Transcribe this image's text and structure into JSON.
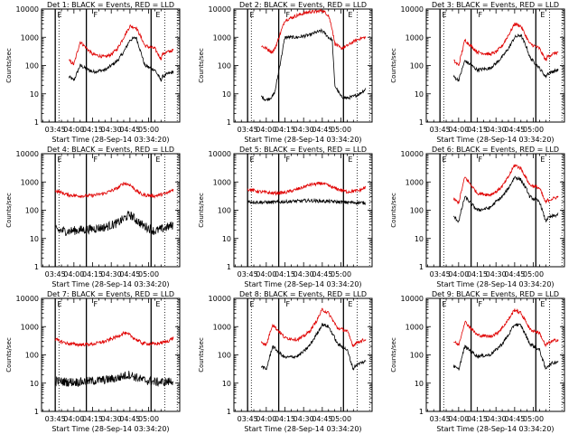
{
  "chart_data": [
    {
      "type": "line",
      "title": "Det 1: BLACK = Events, RED = LLD",
      "xlabel": "Start Time (28-Sep-14 03:34:20)",
      "ylabel": "Counts/sec",
      "x_ticks": [
        "03:45",
        "04:00",
        "04:15",
        "04:30",
        "04:45",
        "05:00"
      ],
      "y_ticks": [
        "1",
        "10",
        "100",
        "1000",
        "10000"
      ],
      "ylim": [
        1,
        10000
      ],
      "y_scale": "log",
      "flags": [
        "E",
        "F",
        "E"
      ],
      "series": [
        {
          "color": "#000000",
          "x_minutes": [
            11,
            15,
            20,
            30,
            40,
            45,
            50,
            55,
            60,
            65,
            70,
            72,
            80,
            85,
            86,
            90,
            95
          ],
          "values": [
            40,
            30,
            100,
            60,
            70,
            100,
            150,
            300,
            800,
            1000,
            200,
            100,
            70,
            30,
            40,
            50,
            60
          ]
        },
        {
          "color": "#e00000",
          "x_minutes": [
            11,
            15,
            20,
            30,
            40,
            45,
            50,
            55,
            60,
            65,
            70,
            72,
            80,
            85,
            86,
            90,
            95
          ],
          "values": [
            150,
            110,
            700,
            250,
            200,
            250,
            400,
            1000,
            2500,
            2200,
            800,
            500,
            400,
            170,
            250,
            300,
            350
          ]
        }
      ]
    },
    {
      "type": "line",
      "title": "Det 2: BLACK = Events, RED = LLD",
      "xlabel": "Start Time (28-Sep-14 03:34:20)",
      "ylabel": "Counts/sec",
      "x_ticks": [
        "03:45",
        "04:00",
        "04:15",
        "04:30",
        "04:45",
        "05:00"
      ],
      "y_ticks": [
        "1",
        "10",
        "100",
        "1000",
        "10000"
      ],
      "ylim": [
        1,
        10000
      ],
      "y_scale": "log",
      "flags": [
        "E",
        "F",
        "E"
      ],
      "series": [
        {
          "color": "#000000",
          "x_minutes": [
            11,
            15,
            20,
            22,
            30,
            40,
            45,
            50,
            55,
            60,
            65,
            68,
            70,
            75,
            80,
            85,
            90,
            95
          ],
          "values": [
            8,
            6,
            8,
            12,
            1000,
            1000,
            1100,
            1200,
            1500,
            1700,
            1000,
            800,
            20,
            8,
            7,
            8,
            10,
            15
          ]
        },
        {
          "color": "#e00000",
          "x_minutes": [
            11,
            15,
            20,
            22,
            30,
            40,
            45,
            50,
            55,
            60,
            65,
            68,
            70,
            75,
            80,
            85,
            90,
            95
          ],
          "values": [
            500,
            400,
            300,
            400,
            4000,
            6000,
            7000,
            8000,
            8000,
            9000,
            6000,
            2000,
            600,
            400,
            500,
            700,
            900,
            1000
          ]
        }
      ]
    },
    {
      "type": "line",
      "title": "Det 3: BLACK = Events, RED = LLD",
      "xlabel": "Start Time (28-Sep-14 03:34:20)",
      "ylabel": "Counts/sec",
      "x_ticks": [
        "03:45",
        "04:00",
        "04:15",
        "04:30",
        "04:45",
        "05:00"
      ],
      "y_ticks": [
        "1",
        "10",
        "100",
        "1000",
        "10000"
      ],
      "ylim": [
        1,
        10000
      ],
      "y_scale": "log",
      "flags": [
        "E",
        "F",
        "E"
      ],
      "series": [
        {
          "color": "#000000",
          "x_minutes": [
            11,
            15,
            20,
            30,
            40,
            45,
            50,
            55,
            60,
            65,
            70,
            72,
            80,
            85,
            86,
            90,
            95
          ],
          "values": [
            40,
            30,
            150,
            70,
            80,
            120,
            200,
            400,
            1000,
            1200,
            400,
            200,
            80,
            40,
            50,
            60,
            70
          ]
        },
        {
          "color": "#e00000",
          "x_minutes": [
            11,
            15,
            20,
            30,
            40,
            45,
            50,
            55,
            60,
            65,
            70,
            72,
            80,
            85,
            86,
            90,
            95
          ],
          "values": [
            150,
            100,
            800,
            300,
            250,
            300,
            500,
            1200,
            3000,
            2500,
            900,
            600,
            400,
            150,
            200,
            250,
            300
          ]
        }
      ]
    },
    {
      "type": "line",
      "title": "Det 4: BLACK = Events, RED = LLD",
      "xlabel": "Start Time (28-Sep-14 03:34:20)",
      "ylabel": "Counts/sec",
      "x_ticks": [
        "03:45",
        "04:00",
        "04:15",
        "04:30",
        "04:45",
        "05:00"
      ],
      "y_ticks": [
        "1",
        "10",
        "100",
        "1000",
        "10000"
      ],
      "ylim": [
        1,
        10000
      ],
      "y_scale": "log",
      "flags": [
        "E",
        "F",
        "E"
      ],
      "series": [
        {
          "color": "#000000",
          "x_minutes": [
            0,
            10,
            20,
            30,
            40,
            50,
            55,
            60,
            65,
            70,
            80,
            90,
            95
          ],
          "values": [
            20,
            18,
            20,
            22,
            25,
            35,
            50,
            70,
            45,
            30,
            18,
            25,
            30
          ]
        },
        {
          "color": "#e00000",
          "x_minutes": [
            0,
            10,
            20,
            30,
            40,
            50,
            55,
            60,
            65,
            70,
            80,
            90,
            95
          ],
          "values": [
            500,
            350,
            320,
            330,
            400,
            600,
            900,
            800,
            500,
            350,
            320,
            400,
            550
          ]
        }
      ]
    },
    {
      "type": "line",
      "title": "Det 5: BLACK = Events, RED = LLD",
      "xlabel": "Start Time (28-Sep-14 03:34:20)",
      "ylabel": "Counts/sec",
      "x_ticks": [
        "03:45",
        "04:00",
        "04:15",
        "04:30",
        "04:45",
        "05:00"
      ],
      "y_ticks": [
        "1",
        "10",
        "100",
        "1000",
        "10000"
      ],
      "ylim": [
        1,
        10000
      ],
      "y_scale": "log",
      "flags": [
        "E",
        "F",
        "E"
      ],
      "series": [
        {
          "color": "#000000",
          "x_minutes": [
            0,
            10,
            20,
            30,
            40,
            50,
            60,
            70,
            80,
            90,
            95
          ],
          "values": [
            200,
            190,
            190,
            200,
            210,
            220,
            210,
            200,
            190,
            185,
            180
          ]
        },
        {
          "color": "#e00000",
          "x_minutes": [
            0,
            10,
            20,
            30,
            40,
            50,
            60,
            70,
            80,
            90,
            95
          ],
          "values": [
            550,
            450,
            400,
            420,
            550,
            800,
            900,
            600,
            450,
            500,
            650
          ]
        }
      ]
    },
    {
      "type": "line",
      "title": "Det 6: BLACK = Events, RED = LLD",
      "xlabel": "Start Time (28-Sep-14 03:34:20)",
      "ylabel": "Counts/sec",
      "x_ticks": [
        "03:45",
        "04:00",
        "04:15",
        "04:30",
        "04:45",
        "05:00"
      ],
      "y_ticks": [
        "1",
        "10",
        "100",
        "1000",
        "10000"
      ],
      "ylim": [
        1,
        10000
      ],
      "y_scale": "log",
      "flags": [
        "E",
        "F",
        "E"
      ],
      "series": [
        {
          "color": "#000000",
          "x_minutes": [
            11,
            15,
            20,
            30,
            40,
            45,
            50,
            55,
            60,
            65,
            70,
            72,
            80,
            85,
            86,
            90,
            95
          ],
          "values": [
            60,
            40,
            300,
            100,
            120,
            200,
            300,
            600,
            1500,
            1200,
            500,
            300,
            200,
            40,
            50,
            60,
            70
          ]
        },
        {
          "color": "#e00000",
          "x_minutes": [
            11,
            15,
            20,
            30,
            40,
            45,
            50,
            55,
            60,
            65,
            70,
            72,
            80,
            85,
            86,
            90,
            95
          ],
          "values": [
            250,
            180,
            1500,
            400,
            350,
            450,
            700,
            1500,
            4000,
            3000,
            1200,
            800,
            600,
            180,
            220,
            250,
            300
          ]
        }
      ]
    },
    {
      "type": "line",
      "title": "Det 7: BLACK = Events, RED = LLD",
      "xlabel": "Start Time (28-Sep-14 03:34:20)",
      "ylabel": "Counts/sec",
      "x_ticks": [
        "03:45",
        "04:00",
        "04:15",
        "04:30",
        "04:45",
        "05:00"
      ],
      "y_ticks": [
        "1",
        "10",
        "100",
        "1000",
        "10000"
      ],
      "ylim": [
        1,
        10000
      ],
      "y_scale": "log",
      "flags": [
        "E",
        "F",
        "E"
      ],
      "series": [
        {
          "color": "#000000",
          "x_minutes": [
            0,
            10,
            20,
            30,
            40,
            50,
            55,
            60,
            65,
            70,
            80,
            90,
            95
          ],
          "values": [
            12,
            11,
            11,
            12,
            13,
            15,
            18,
            20,
            16,
            13,
            11,
            11,
            12
          ]
        },
        {
          "color": "#e00000",
          "x_minutes": [
            0,
            10,
            20,
            30,
            40,
            50,
            55,
            60,
            65,
            70,
            80,
            90,
            95
          ],
          "values": [
            350,
            250,
            230,
            240,
            300,
            450,
            600,
            500,
            350,
            260,
            240,
            300,
            400
          ]
        }
      ]
    },
    {
      "type": "line",
      "title": "Det 8: BLACK = Events, RED = LLD",
      "xlabel": "Start Time (28-Sep-14 03:34:20)",
      "ylabel": "Counts/sec",
      "x_ticks": [
        "03:45",
        "04:00",
        "04:15",
        "04:30",
        "04:45",
        "05:00"
      ],
      "y_ticks": [
        "1",
        "10",
        "100",
        "1000",
        "10000"
      ],
      "ylim": [
        1,
        10000
      ],
      "y_scale": "log",
      "flags": [
        "E",
        "F",
        "E"
      ],
      "series": [
        {
          "color": "#000000",
          "x_minutes": [
            11,
            15,
            20,
            30,
            40,
            45,
            50,
            55,
            60,
            65,
            70,
            72,
            80,
            85,
            86,
            90,
            95
          ],
          "values": [
            40,
            30,
            200,
            80,
            90,
            130,
            220,
            500,
            1200,
            1000,
            400,
            250,
            150,
            30,
            40,
            50,
            60
          ]
        },
        {
          "color": "#e00000",
          "x_minutes": [
            11,
            15,
            20,
            30,
            40,
            45,
            50,
            55,
            60,
            65,
            70,
            72,
            80,
            85,
            86,
            90,
            95
          ],
          "values": [
            300,
            220,
            1200,
            400,
            350,
            450,
            700,
            1500,
            4000,
            3000,
            1300,
            900,
            700,
            200,
            250,
            300,
            350
          ]
        }
      ]
    },
    {
      "type": "line",
      "title": "Det 9: BLACK = Events, RED = LLD",
      "xlabel": "Start Time (28-Sep-14 03:34:20)",
      "ylabel": "Counts/sec",
      "x_ticks": [
        "03:45",
        "04:00",
        "04:15",
        "04:30",
        "04:45",
        "05:00"
      ],
      "y_ticks": [
        "1",
        "10",
        "100",
        "1000",
        "10000"
      ],
      "ylim": [
        1,
        10000
      ],
      "y_scale": "log",
      "flags": [
        "E",
        "F",
        "E"
      ],
      "series": [
        {
          "color": "#000000",
          "x_minutes": [
            11,
            15,
            20,
            30,
            40,
            45,
            50,
            55,
            60,
            65,
            70,
            72,
            80,
            85,
            86,
            90,
            95
          ],
          "values": [
            40,
            30,
            200,
            90,
            100,
            150,
            250,
            500,
            1200,
            1100,
            400,
            250,
            150,
            30,
            40,
            50,
            60
          ]
        },
        {
          "color": "#e00000",
          "x_minutes": [
            11,
            15,
            20,
            30,
            40,
            45,
            50,
            55,
            60,
            65,
            70,
            72,
            80,
            85,
            86,
            90,
            95
          ],
          "values": [
            300,
            220,
            1500,
            500,
            450,
            550,
            900,
            1800,
            4000,
            3000,
            1300,
            800,
            600,
            200,
            250,
            300,
            350
          ]
        }
      ]
    }
  ]
}
